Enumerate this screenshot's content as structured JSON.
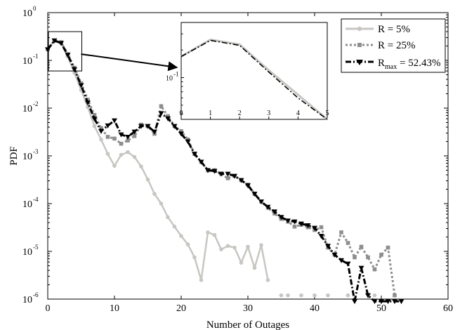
{
  "chart_data": [
    {
      "type": "line",
      "title": "",
      "xlabel": "Number of Outages",
      "ylabel": "PDF",
      "xlim": [
        0,
        60
      ],
      "ylim": [
        1e-06,
        1
      ],
      "yscale": "log",
      "xticks": [
        "0",
        "10",
        "20",
        "30",
        "40",
        "50",
        "60"
      ],
      "yticks": [
        {
          "base": "10",
          "exp": "0"
        },
        {
          "base": "10",
          "exp": "-1"
        },
        {
          "base": "10",
          "exp": "-2"
        },
        {
          "base": "10",
          "exp": "-3"
        },
        {
          "base": "10",
          "exp": "-4"
        },
        {
          "base": "10",
          "exp": "-5"
        },
        {
          "base": "10",
          "exp": "-6"
        }
      ],
      "legend": {
        "placement": "top-right",
        "entries": [
          {
            "text": "R = 5%"
          },
          {
            "text": "R = 25%"
          },
          {
            "text_main": "R",
            "text_sub": "max",
            "text_rest": " = 52.43%"
          }
        ]
      },
      "series": [
        {
          "name": "R = 5%",
          "color": "#c8c6c2",
          "dash": "solid",
          "marker": "circle",
          "x": [
            0,
            1,
            2,
            3,
            4,
            5,
            6,
            7,
            8,
            9,
            10,
            11,
            12,
            13,
            14,
            15,
            16,
            17,
            18,
            19,
            20,
            21,
            22,
            23,
            24,
            25,
            26,
            27,
            28,
            29,
            30,
            31,
            32,
            33
          ],
          "y": [
            0.17,
            0.26,
            0.23,
            0.12,
            0.055,
            0.024,
            0.0105,
            0.0042,
            0.0022,
            0.0011,
            0.00062,
            0.00105,
            0.0012,
            0.00095,
            0.0006,
            0.00032,
            0.00016,
            0.0001,
            5.2e-05,
            3.3e-05,
            2.1e-05,
            1.4e-05,
            7.5e-06,
            2.5e-06,
            2.5e-05,
            2.2e-05,
            1.1e-05,
            1.3e-05,
            1.2e-05,
            5.8e-06,
            1.25e-05,
            4.5e-06,
            1.35e-05,
            2.5e-06
          ]
        },
        {
          "name": "R = 5% (isolated)",
          "color": "#c8c6c2",
          "dash": "solid",
          "marker": "circle",
          "x": [
            35,
            36,
            38,
            40,
            42,
            45,
            49
          ],
          "y": [
            1.2e-06,
            1.2e-06,
            1.2e-06,
            1.2e-06,
            1.2e-06,
            1.2e-06,
            1.2e-06
          ]
        },
        {
          "name": "R = 25%",
          "color": "#8e8e8e",
          "dash": "dotted",
          "marker": "square",
          "x": [
            0,
            1,
            2,
            3,
            4,
            5,
            6,
            7,
            8,
            9,
            10,
            11,
            12,
            13,
            14,
            15,
            16,
            17,
            18,
            19,
            20,
            21,
            22,
            23,
            24,
            25,
            26,
            27,
            28,
            29,
            30,
            31,
            32,
            33,
            34,
            35,
            36,
            37,
            38,
            39,
            40,
            41,
            42,
            43,
            44,
            45,
            46,
            47,
            48,
            49,
            50,
            51,
            52
          ],
          "y": [
            0.17,
            0.26,
            0.24,
            0.135,
            0.07,
            0.033,
            0.015,
            0.0072,
            0.0038,
            0.0025,
            0.0023,
            0.0018,
            0.0021,
            0.0026,
            0.0045,
            0.0042,
            0.0029,
            0.011,
            0.0068,
            0.0042,
            0.0033,
            0.0022,
            0.0011,
            0.00075,
            0.0005,
            0.0005,
            0.00042,
            0.00034,
            0.00038,
            0.00031,
            0.00025,
            0.00016,
            0.00011,
            8.2e-05,
            6.2e-05,
            4.8e-05,
            4.2e-05,
            3.3e-05,
            3.6e-05,
            3.2e-05,
            2.8e-05,
            3.2e-05,
            1.2e-05,
            8.5e-06,
            2.5e-05,
            1.5e-05,
            7.5e-06,
            1.25e-05,
            7.5e-06,
            4.2e-06,
            8.5e-06,
            1.2e-05,
            1.2e-06
          ]
        },
        {
          "name": "R_max = 52.43%",
          "color": "#000000",
          "dash": "dashdot",
          "marker": "triangle-down",
          "x": [
            0,
            1,
            2,
            3,
            4,
            5,
            6,
            7,
            8,
            9,
            10,
            11,
            12,
            13,
            14,
            15,
            16,
            17,
            18,
            19,
            20,
            21,
            22,
            23,
            24,
            25,
            26,
            27,
            28,
            29,
            30,
            31,
            32,
            33,
            34,
            35,
            36,
            37,
            38,
            39,
            40,
            41,
            42,
            43,
            44,
            45,
            46,
            47,
            48,
            49,
            50,
            51,
            52,
            53
          ],
          "y": [
            0.17,
            0.26,
            0.23,
            0.13,
            0.065,
            0.03,
            0.013,
            0.006,
            0.0033,
            0.0043,
            0.0055,
            0.0028,
            0.0025,
            0.0032,
            0.0042,
            0.0042,
            0.0032,
            0.0078,
            0.0061,
            0.0042,
            0.0029,
            0.002,
            0.0011,
            0.00075,
            0.0005,
            0.00048,
            0.00042,
            0.00042,
            0.00038,
            0.00031,
            0.00024,
            0.00016,
            0.00011,
            8.5e-05,
            6.8e-05,
            5.2e-05,
            4.4e-05,
            4.2e-05,
            3.8e-05,
            3.5e-05,
            3.1e-05,
            2.1e-05,
            1.3e-05,
            8.5e-06,
            6.5e-06,
            5.5e-06,
            9e-07,
            4.5e-06,
            1.2e-06,
            9e-07,
            9e-07,
            9e-07,
            9e-07,
            9e-07
          ]
        }
      ],
      "zoom_region": {
        "x": [
          0,
          5
        ],
        "y": [
          0.06,
          0.4
        ]
      }
    },
    {
      "type": "line",
      "title": "",
      "xlabel": "",
      "ylabel": "",
      "xlim": [
        0,
        5
      ],
      "ylim": [
        0.035,
        0.4
      ],
      "yscale": "log",
      "xticks": [
        "0",
        "1",
        "2",
        "3",
        "4",
        "5"
      ],
      "yticks": [
        {
          "base": "10",
          "exp": "-1"
        }
      ],
      "series": [
        {
          "name": "R = 5%",
          "color": "#c8c6c2",
          "dash": "solid",
          "x": [
            0,
            1,
            2,
            3,
            4,
            5
          ],
          "y": [
            0.17,
            0.26,
            0.23,
            0.12,
            0.065,
            0.035
          ]
        },
        {
          "name": "R_max = 52.43%",
          "color": "#000000",
          "dash": "dashdot",
          "x": [
            0,
            1,
            2,
            3,
            4,
            5
          ],
          "y": [
            0.17,
            0.255,
            0.225,
            0.115,
            0.06,
            0.035
          ]
        }
      ]
    }
  ]
}
